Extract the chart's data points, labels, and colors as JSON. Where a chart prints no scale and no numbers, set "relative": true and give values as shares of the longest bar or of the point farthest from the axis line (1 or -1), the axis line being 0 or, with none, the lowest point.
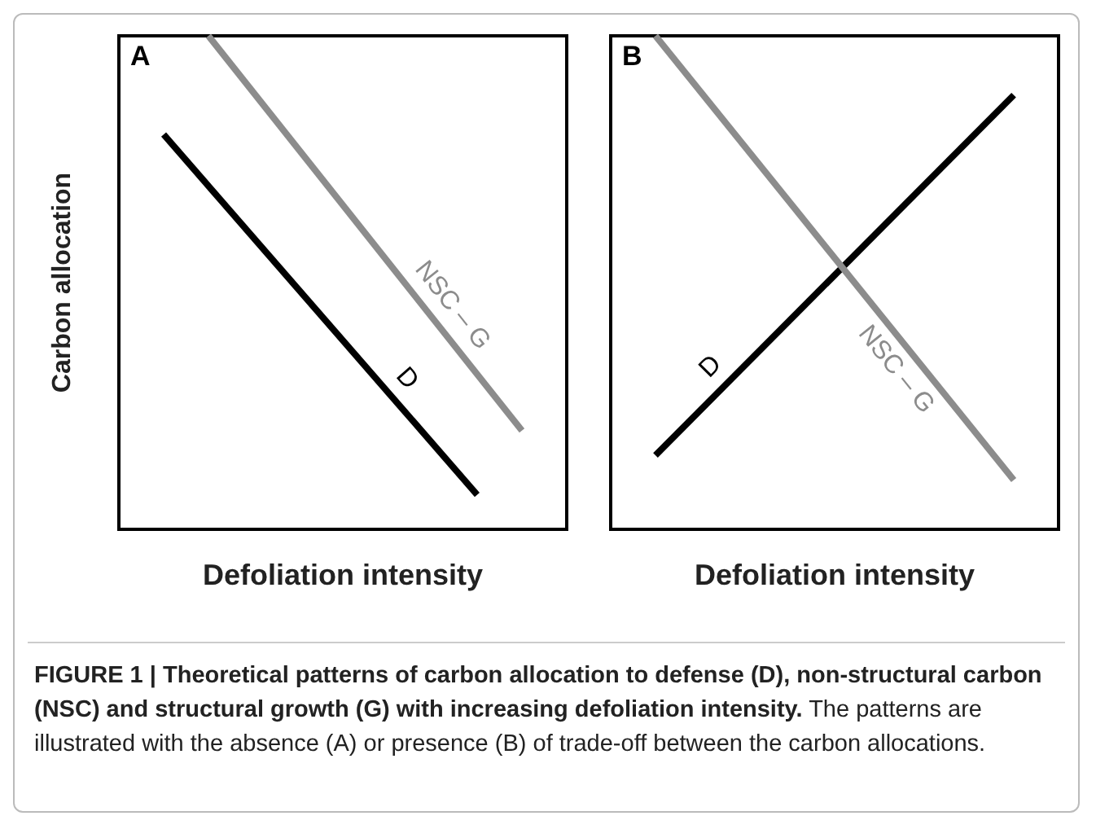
{
  "chart_data": [
    {
      "type": "line",
      "title": "A",
      "xlabel": "Defoliation intensity",
      "ylabel": "Carbon allocation",
      "relative": true,
      "legend": false,
      "categories": [
        null,
        null,
        null,
        null,
        null,
        null,
        null,
        null,
        null,
        null,
        null
      ],
      "series": [
        {
          "name": "D",
          "color": "#000000",
          "values": [
            null,
            0.8,
            null,
            null,
            null,
            null,
            null,
            null,
            0.07,
            null,
            null
          ]
        },
        {
          "name": "NSC – G",
          "color": "#8c8c8c",
          "values": [
            null,
            null,
            1,
            null,
            null,
            null,
            null,
            null,
            null,
            0.2,
            null
          ]
        }
      ],
      "annotations": [
        "FIGURE 1 | Theoretical patterns of carbon allocation to defense (D), non-structural carbon (NSC) and structural growth (G) with increasing defoliation intensity.",
        "The patterns are illustrated with the absence (A) or presence (B) of trade-off between the carbon allocations."
      ]
    },
    {
      "type": "line",
      "title": "B",
      "xlabel": "Defoliation intensity",
      "relative": true,
      "legend": false,
      "categories": [
        null,
        null,
        null,
        null,
        null,
        null,
        null,
        null,
        null,
        null,
        null
      ],
      "series": [
        {
          "name": "D",
          "color": "#000000",
          "values": [
            null,
            0.15,
            null,
            null,
            null,
            null,
            null,
            null,
            null,
            0.88,
            null
          ]
        },
        {
          "name": "NSC – G",
          "color": "#8c8c8c",
          "values": [
            null,
            1,
            null,
            null,
            null,
            null,
            null,
            null,
            null,
            0.1,
            null
          ]
        }
      ]
    }
  ]
}
